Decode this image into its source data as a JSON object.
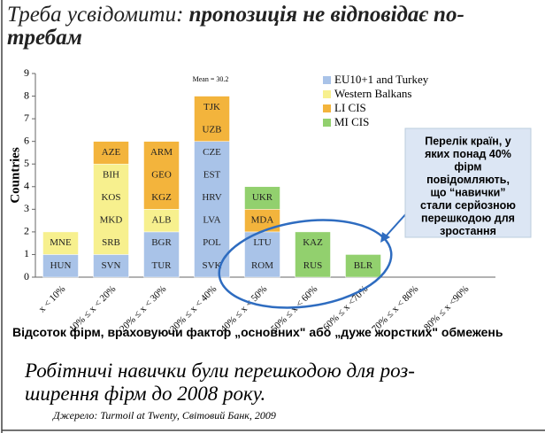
{
  "slide": {
    "title_normal": "Треба усвідомити: ",
    "title_bold_line1": "пропозиція не відповідає по-",
    "title_bold_line2": "требам",
    "footer_lines": [
      "Робітничі навички були перешкодою для роз-",
      "ширення фірм до 2008 року."
    ],
    "source": "Джерело: Turmoil at Twenty, Світовий Банк, 2009"
  },
  "chart_data": {
    "type": "stacked_bar",
    "categories": [
      "x < 10%",
      "10% ≤ x < 20%",
      "20% ≤ x < 30%",
      "30% ≤ x < 40%",
      "40% ≤ x < 50%",
      "50% ≤ x < 60%",
      "60% ≤ x <70%",
      "70% ≤ x < 80%",
      "80% ≤ x <90%"
    ],
    "ylabel": "Countries",
    "xlabel": "Відсоток фірм, враховуючи фактор „основних\" або „дуже жорстких\" обмежень",
    "ylim": [
      0,
      9
    ],
    "yticks": [
      0,
      1,
      2,
      3,
      4,
      5,
      6,
      7,
      8,
      9
    ],
    "annotation": "Mean = 30.2",
    "callout_lines": [
      "Перелік країн, у",
      "яких понад 40%",
      "фірм",
      "повідомляють,",
      "що “навички”",
      "стали серйозною",
      "перешкодою для",
      "зростання"
    ],
    "series": [
      {
        "name": "EU10+1 and Turkey",
        "color": "#a9c3e8",
        "values": [
          1,
          1,
          2,
          6,
          2,
          0,
          0,
          0,
          0
        ],
        "labels": [
          [
            "HUN"
          ],
          [
            "SVN"
          ],
          [
            "TUR",
            "BGR"
          ],
          [
            "SVK",
            "POL",
            "LVA",
            "HRV",
            "EST",
            "CZE"
          ],
          [
            "ROM",
            "LTU"
          ],
          [],
          [],
          [],
          []
        ]
      },
      {
        "name": "Western Balkans",
        "color": "#f7f08e",
        "values": [
          1,
          4,
          1,
          0,
          0,
          0,
          0,
          0,
          0
        ],
        "labels": [
          [
            "MNE"
          ],
          [
            "SRB",
            "MKD",
            "KOS",
            "BIH"
          ],
          [
            "ALB"
          ],
          [],
          [],
          [],
          [],
          [],
          []
        ]
      },
      {
        "name": "LI CIS",
        "color": "#f3b43c",
        "values": [
          0,
          1,
          3,
          2,
          1,
          0,
          0,
          0,
          0
        ],
        "labels": [
          [],
          [
            "AZE"
          ],
          [
            "KGZ",
            "GEO",
            "ARM"
          ],
          [
            "UZB",
            "TJK"
          ],
          [
            "MDA"
          ],
          [],
          [],
          [],
          []
        ]
      },
      {
        "name": "MI CIS",
        "color": "#92d06e",
        "values": [
          0,
          0,
          0,
          0,
          1,
          2,
          1,
          0,
          0
        ],
        "labels": [
          [],
          [],
          [],
          [],
          [
            "UKR"
          ],
          [
            "RUS",
            "KAZ"
          ],
          [
            "BLR"
          ],
          [],
          []
        ]
      }
    ]
  }
}
